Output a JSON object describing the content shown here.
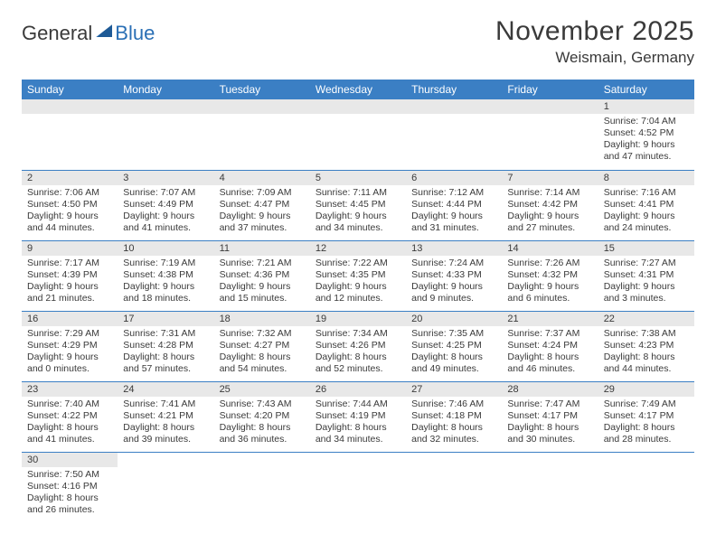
{
  "logo": {
    "part1": "General",
    "part2": "Blue"
  },
  "title": "November 2025",
  "location": "Weismain, Germany",
  "colors": {
    "header_bg": "#3b7fc4",
    "header_fg": "#ffffff",
    "daynum_bg": "#e8e8e8",
    "row_divider": "#3b7fc4",
    "text": "#3a3a3a",
    "logo_blue": "#2a6fb5"
  },
  "weekdays": [
    "Sunday",
    "Monday",
    "Tuesday",
    "Wednesday",
    "Thursday",
    "Friday",
    "Saturday"
  ],
  "weeks": [
    [
      null,
      null,
      null,
      null,
      null,
      null,
      {
        "n": "1",
        "sr": "Sunrise: 7:04 AM",
        "ss": "Sunset: 4:52 PM",
        "dl": "Daylight: 9 hours and 47 minutes."
      }
    ],
    [
      {
        "n": "2",
        "sr": "Sunrise: 7:06 AM",
        "ss": "Sunset: 4:50 PM",
        "dl": "Daylight: 9 hours and 44 minutes."
      },
      {
        "n": "3",
        "sr": "Sunrise: 7:07 AM",
        "ss": "Sunset: 4:49 PM",
        "dl": "Daylight: 9 hours and 41 minutes."
      },
      {
        "n": "4",
        "sr": "Sunrise: 7:09 AM",
        "ss": "Sunset: 4:47 PM",
        "dl": "Daylight: 9 hours and 37 minutes."
      },
      {
        "n": "5",
        "sr": "Sunrise: 7:11 AM",
        "ss": "Sunset: 4:45 PM",
        "dl": "Daylight: 9 hours and 34 minutes."
      },
      {
        "n": "6",
        "sr": "Sunrise: 7:12 AM",
        "ss": "Sunset: 4:44 PM",
        "dl": "Daylight: 9 hours and 31 minutes."
      },
      {
        "n": "7",
        "sr": "Sunrise: 7:14 AM",
        "ss": "Sunset: 4:42 PM",
        "dl": "Daylight: 9 hours and 27 minutes."
      },
      {
        "n": "8",
        "sr": "Sunrise: 7:16 AM",
        "ss": "Sunset: 4:41 PM",
        "dl": "Daylight: 9 hours and 24 minutes."
      }
    ],
    [
      {
        "n": "9",
        "sr": "Sunrise: 7:17 AM",
        "ss": "Sunset: 4:39 PM",
        "dl": "Daylight: 9 hours and 21 minutes."
      },
      {
        "n": "10",
        "sr": "Sunrise: 7:19 AM",
        "ss": "Sunset: 4:38 PM",
        "dl": "Daylight: 9 hours and 18 minutes."
      },
      {
        "n": "11",
        "sr": "Sunrise: 7:21 AM",
        "ss": "Sunset: 4:36 PM",
        "dl": "Daylight: 9 hours and 15 minutes."
      },
      {
        "n": "12",
        "sr": "Sunrise: 7:22 AM",
        "ss": "Sunset: 4:35 PM",
        "dl": "Daylight: 9 hours and 12 minutes."
      },
      {
        "n": "13",
        "sr": "Sunrise: 7:24 AM",
        "ss": "Sunset: 4:33 PM",
        "dl": "Daylight: 9 hours and 9 minutes."
      },
      {
        "n": "14",
        "sr": "Sunrise: 7:26 AM",
        "ss": "Sunset: 4:32 PM",
        "dl": "Daylight: 9 hours and 6 minutes."
      },
      {
        "n": "15",
        "sr": "Sunrise: 7:27 AM",
        "ss": "Sunset: 4:31 PM",
        "dl": "Daylight: 9 hours and 3 minutes."
      }
    ],
    [
      {
        "n": "16",
        "sr": "Sunrise: 7:29 AM",
        "ss": "Sunset: 4:29 PM",
        "dl": "Daylight: 9 hours and 0 minutes."
      },
      {
        "n": "17",
        "sr": "Sunrise: 7:31 AM",
        "ss": "Sunset: 4:28 PM",
        "dl": "Daylight: 8 hours and 57 minutes."
      },
      {
        "n": "18",
        "sr": "Sunrise: 7:32 AM",
        "ss": "Sunset: 4:27 PM",
        "dl": "Daylight: 8 hours and 54 minutes."
      },
      {
        "n": "19",
        "sr": "Sunrise: 7:34 AM",
        "ss": "Sunset: 4:26 PM",
        "dl": "Daylight: 8 hours and 52 minutes."
      },
      {
        "n": "20",
        "sr": "Sunrise: 7:35 AM",
        "ss": "Sunset: 4:25 PM",
        "dl": "Daylight: 8 hours and 49 minutes."
      },
      {
        "n": "21",
        "sr": "Sunrise: 7:37 AM",
        "ss": "Sunset: 4:24 PM",
        "dl": "Daylight: 8 hours and 46 minutes."
      },
      {
        "n": "22",
        "sr": "Sunrise: 7:38 AM",
        "ss": "Sunset: 4:23 PM",
        "dl": "Daylight: 8 hours and 44 minutes."
      }
    ],
    [
      {
        "n": "23",
        "sr": "Sunrise: 7:40 AM",
        "ss": "Sunset: 4:22 PM",
        "dl": "Daylight: 8 hours and 41 minutes."
      },
      {
        "n": "24",
        "sr": "Sunrise: 7:41 AM",
        "ss": "Sunset: 4:21 PM",
        "dl": "Daylight: 8 hours and 39 minutes."
      },
      {
        "n": "25",
        "sr": "Sunrise: 7:43 AM",
        "ss": "Sunset: 4:20 PM",
        "dl": "Daylight: 8 hours and 36 minutes."
      },
      {
        "n": "26",
        "sr": "Sunrise: 7:44 AM",
        "ss": "Sunset: 4:19 PM",
        "dl": "Daylight: 8 hours and 34 minutes."
      },
      {
        "n": "27",
        "sr": "Sunrise: 7:46 AM",
        "ss": "Sunset: 4:18 PM",
        "dl": "Daylight: 8 hours and 32 minutes."
      },
      {
        "n": "28",
        "sr": "Sunrise: 7:47 AM",
        "ss": "Sunset: 4:17 PM",
        "dl": "Daylight: 8 hours and 30 minutes."
      },
      {
        "n": "29",
        "sr": "Sunrise: 7:49 AM",
        "ss": "Sunset: 4:17 PM",
        "dl": "Daylight: 8 hours and 28 minutes."
      }
    ],
    [
      {
        "n": "30",
        "sr": "Sunrise: 7:50 AM",
        "ss": "Sunset: 4:16 PM",
        "dl": "Daylight: 8 hours and 26 minutes."
      },
      null,
      null,
      null,
      null,
      null,
      null
    ]
  ]
}
